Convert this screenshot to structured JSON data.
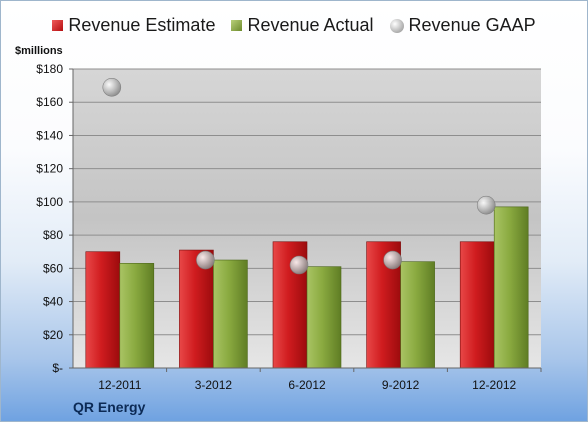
{
  "colors": {
    "estimate": "#c8181a",
    "actual": "#88a83e",
    "gaap": "#b0b0b0"
  },
  "chart_data": {
    "type": "bar",
    "unit_label": "$millions",
    "company": "QR Energy",
    "categories": [
      "12-2011",
      "3-2012",
      "6-2012",
      "9-2012",
      "12-2012"
    ],
    "series": [
      {
        "name": "Revenue Estimate",
        "kind": "bar",
        "values": [
          70,
          71,
          76,
          76,
          76
        ]
      },
      {
        "name": "Revenue Actual",
        "kind": "bar",
        "values": [
          63,
          65,
          61,
          64,
          97
        ]
      },
      {
        "name": "Revenue GAAP",
        "kind": "scatter",
        "values": [
          169,
          65,
          62,
          65,
          98
        ]
      }
    ],
    "ylim": [
      0,
      180
    ],
    "yticks": [
      0,
      20,
      40,
      60,
      80,
      100,
      120,
      140,
      160,
      180
    ],
    "ytick_labels": [
      "$-",
      "$20",
      "$40",
      "$60",
      "$80",
      "$100",
      "$120",
      "$140",
      "$160",
      "$180"
    ],
    "grid": true,
    "legend_position": "top"
  }
}
